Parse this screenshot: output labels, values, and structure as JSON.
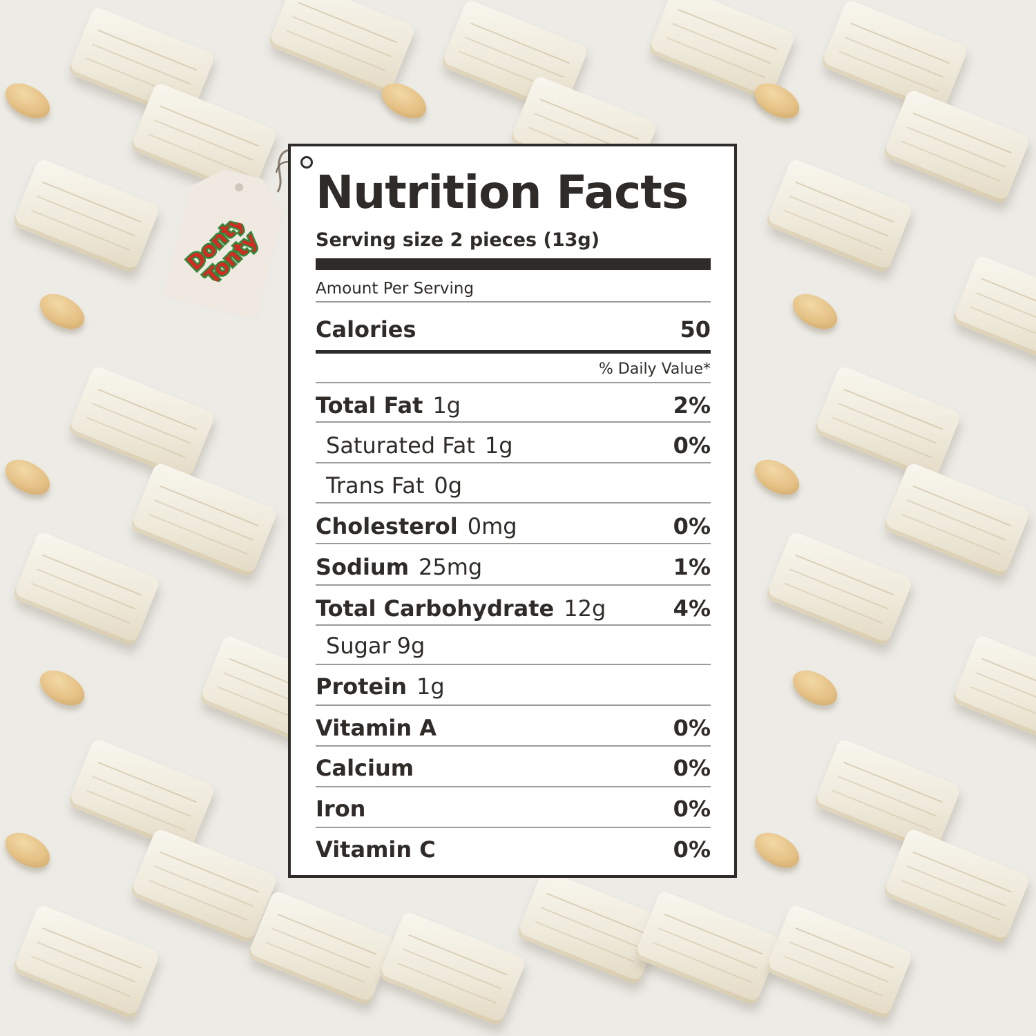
{
  "panel": {
    "title": "Nutrition Facts",
    "serving_size": "Serving size 2 pieces (13g)",
    "amount_per_serving": "Amount Per Serving",
    "calories": {
      "label": "Calories",
      "value": "50"
    },
    "daily_value_header": "% Daily Value*",
    "nutrients": [
      {
        "label": "Total Fat",
        "amount": "1g",
        "dv": "2%"
      },
      {
        "label": "Saturated Fat",
        "amount": "1g",
        "dv": "0%"
      },
      {
        "label": "Trans Fat",
        "amount": "0g",
        "dv": ""
      },
      {
        "label": "Cholesterol",
        "amount": "0mg",
        "dv": "0%"
      },
      {
        "label": "Sodium",
        "amount": "25mg",
        "dv": "1%"
      },
      {
        "label": "Total Carbohydrate",
        "amount": "12g",
        "dv": "4%"
      },
      {
        "label": "Sugar",
        "amount": "9g",
        "dv": ""
      },
      {
        "label": "Protein",
        "amount": "1g",
        "dv": ""
      },
      {
        "label": "Vitamin A",
        "amount": "",
        "dv": "0%"
      },
      {
        "label": "Calcium",
        "amount": "",
        "dv": "0%"
      },
      {
        "label": "Iron",
        "amount": "",
        "dv": "0%"
      },
      {
        "label": "Vitamin C",
        "amount": "",
        "dv": "0%"
      }
    ]
  },
  "brand_tag": {
    "logo_text_line1": "Donty",
    "logo_text_line2": "Tonty"
  },
  "colors": {
    "ink": "#2f2b28",
    "background": "#ecebe6",
    "logo_red": "#d42a24",
    "logo_green": "#2e8a3a",
    "logo_yellow": "#f4c430"
  }
}
